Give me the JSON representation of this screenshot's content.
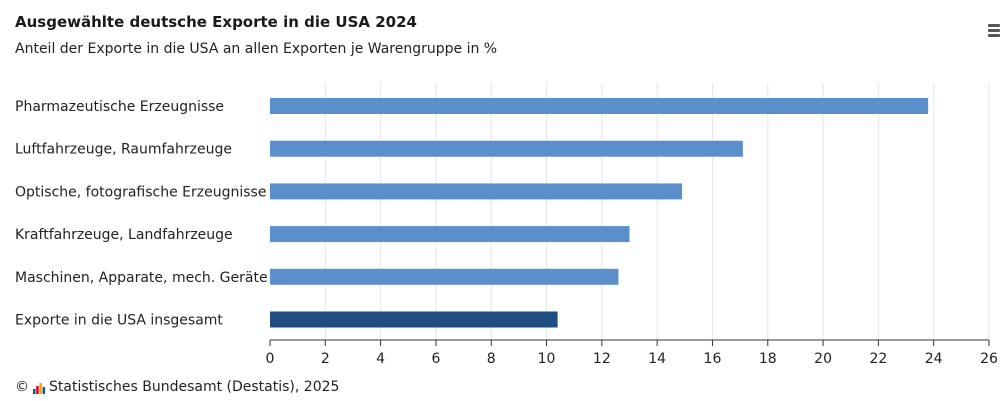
{
  "chart_data": {
    "type": "bar",
    "orientation": "horizontal",
    "title": "Ausgewählte deutsche Exporte in die USA 2024",
    "subtitle": "Anteil der Exporte in die USA an allen Exporten je Warengruppe in %",
    "categories": [
      "Pharmazeutische Erzeugnisse",
      "Luftfahrzeuge, Raumfahrzeuge",
      "Optische, fotografische Erzeugnisse",
      "Kraftfahrzeuge, Landfahrzeuge",
      "Maschinen, Apparate, mech. Geräte",
      "Exporte in die USA insgesamt"
    ],
    "values": [
      23.8,
      17.1,
      14.9,
      13.0,
      12.6,
      10.4
    ],
    "highlight_index": 5,
    "xlim": [
      0,
      26
    ],
    "xticks": [
      0,
      2,
      4,
      6,
      8,
      10,
      12,
      14,
      16,
      18,
      20,
      22,
      24,
      26
    ],
    "grid": true,
    "colors": {
      "bar": "#5b8fcb",
      "highlight": "#1f4e82",
      "grid": "#e6e6e6",
      "axis": "#333333"
    }
  },
  "footer": {
    "copyright": "©",
    "source": "Statistisches Bundesamt (Destatis), 2025"
  },
  "icons": {
    "menu": "hamburger-menu-icon",
    "logo": "destatis-logo-icon"
  }
}
